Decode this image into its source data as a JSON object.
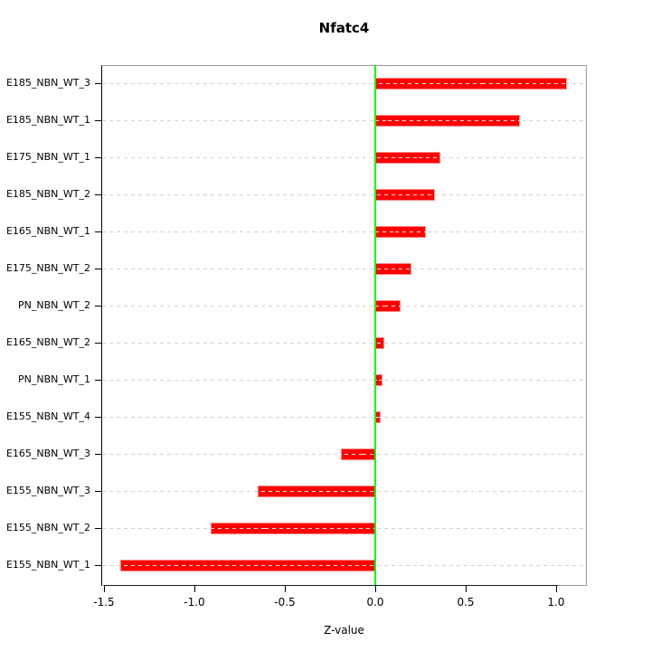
{
  "chart_data": {
    "type": "bar",
    "orientation": "horizontal",
    "title": "Nfatc4",
    "xlabel": "Z-value",
    "ylabel": "",
    "categories": [
      "E185_NBN_WT_3",
      "E185_NBN_WT_1",
      "E175_NBN_WT_1",
      "E185_NBN_WT_2",
      "E165_NBN_WT_1",
      "E175_NBN_WT_2",
      "PN_NBN_WT_2",
      "E165_NBN_WT_2",
      "PN_NBN_WT_1",
      "E155_NBN_WT_4",
      "E165_NBN_WT_3",
      "E155_NBN_WT_3",
      "E155_NBN_WT_2",
      "E155_NBN_WT_1"
    ],
    "values": [
      1.06,
      0.8,
      0.36,
      0.33,
      0.28,
      0.2,
      0.14,
      0.05,
      0.04,
      0.03,
      -0.19,
      -0.65,
      -0.91,
      -1.41
    ],
    "baseline": 0,
    "xlim": [
      -1.51,
      1.165
    ],
    "x_ticks": [
      -1.5,
      -1.0,
      -0.5,
      0.0,
      0.5,
      1.0
    ],
    "x_tick_labels": [
      "-1.5",
      "-1.0",
      "-0.5",
      "0.0",
      "0.5",
      "1.0"
    ],
    "grid": "dashed horizontal line per category row",
    "legend_position": "none"
  },
  "colors": {
    "bar": "#ff0000",
    "bar_edge": "#ff8585",
    "bar_inner_dash": "#ffffff",
    "baseline_line": "#00ff00",
    "grid_dash": "#d3d3d3",
    "box_border": "#9b9b9b",
    "axis": "#000000",
    "text": "#000000",
    "background": "#ffffff"
  }
}
